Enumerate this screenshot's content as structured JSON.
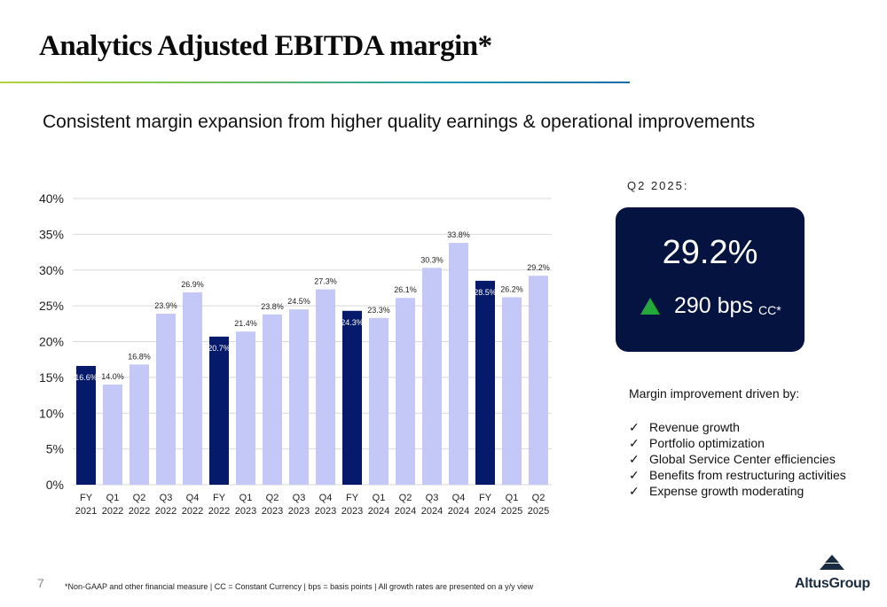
{
  "slide": {
    "title": "Analytics Adjusted EBITDA margin*",
    "subtitle": "Consistent margin expansion from higher quality earnings & operational improvements",
    "page_number": "7",
    "footnote": "*Non-GAAP and other financial measure | CC = Constant Currency  |  bps =  basis points  | All growth rates are presented on a y/y view",
    "logo_text": "AltusGroup"
  },
  "kpi": {
    "period_label": "Q2 2025:",
    "value": "29.2%",
    "delta_value": "290 bps",
    "delta_unit": "CC*",
    "arrow_icon": "up-triangle-icon",
    "card_color": "#051340",
    "arrow_color": "#25a83a"
  },
  "drivers": {
    "title": "Margin improvement driven by:",
    "check_glyph": "✓",
    "items": [
      "Revenue growth",
      "Portfolio optimization",
      "Global Service Center efficiencies",
      "Benefits from restructuring activities",
      "Expense growth moderating"
    ]
  },
  "chart_data": {
    "type": "bar",
    "categories": [
      [
        "FY",
        "2021"
      ],
      [
        "Q1",
        "2022"
      ],
      [
        "Q2",
        "2022"
      ],
      [
        "Q3",
        "2022"
      ],
      [
        "Q4",
        "2022"
      ],
      [
        "FY",
        "2022"
      ],
      [
        "Q1",
        "2023"
      ],
      [
        "Q2",
        "2023"
      ],
      [
        "Q3",
        "2023"
      ],
      [
        "Q4",
        "2023"
      ],
      [
        "FY",
        "2023"
      ],
      [
        "Q1",
        "2024"
      ],
      [
        "Q2",
        "2024"
      ],
      [
        "Q3",
        "2024"
      ],
      [
        "Q4",
        "2024"
      ],
      [
        "FY",
        "2024"
      ],
      [
        "Q1",
        "2025"
      ],
      [
        "Q2",
        "2025"
      ]
    ],
    "values": [
      16.6,
      14.0,
      16.8,
      23.9,
      26.9,
      20.7,
      21.4,
      23.8,
      24.5,
      27.3,
      24.3,
      23.3,
      26.1,
      30.3,
      33.8,
      28.5,
      26.2,
      29.2
    ],
    "value_labels": [
      "16.6%",
      "14.0%",
      "16.8%",
      "23.9%",
      "26.9%",
      "20.7%",
      "21.4%",
      "23.8%",
      "24.5%",
      "27.3%",
      "24.3%",
      "23.3%",
      "26.1%",
      "30.3%",
      "33.8%",
      "28.5%",
      "26.2%",
      "29.2%"
    ],
    "is_full_year": [
      true,
      false,
      false,
      false,
      false,
      true,
      false,
      false,
      false,
      false,
      true,
      false,
      false,
      false,
      false,
      true,
      false,
      false
    ],
    "yticks": [
      "0%",
      "5%",
      "10%",
      "15%",
      "20%",
      "25%",
      "30%",
      "35%",
      "40%"
    ],
    "ylim": [
      0,
      40
    ],
    "grid": true,
    "colors": {
      "full_year": "#061a6b",
      "quarter": "#c3c8f6"
    }
  }
}
